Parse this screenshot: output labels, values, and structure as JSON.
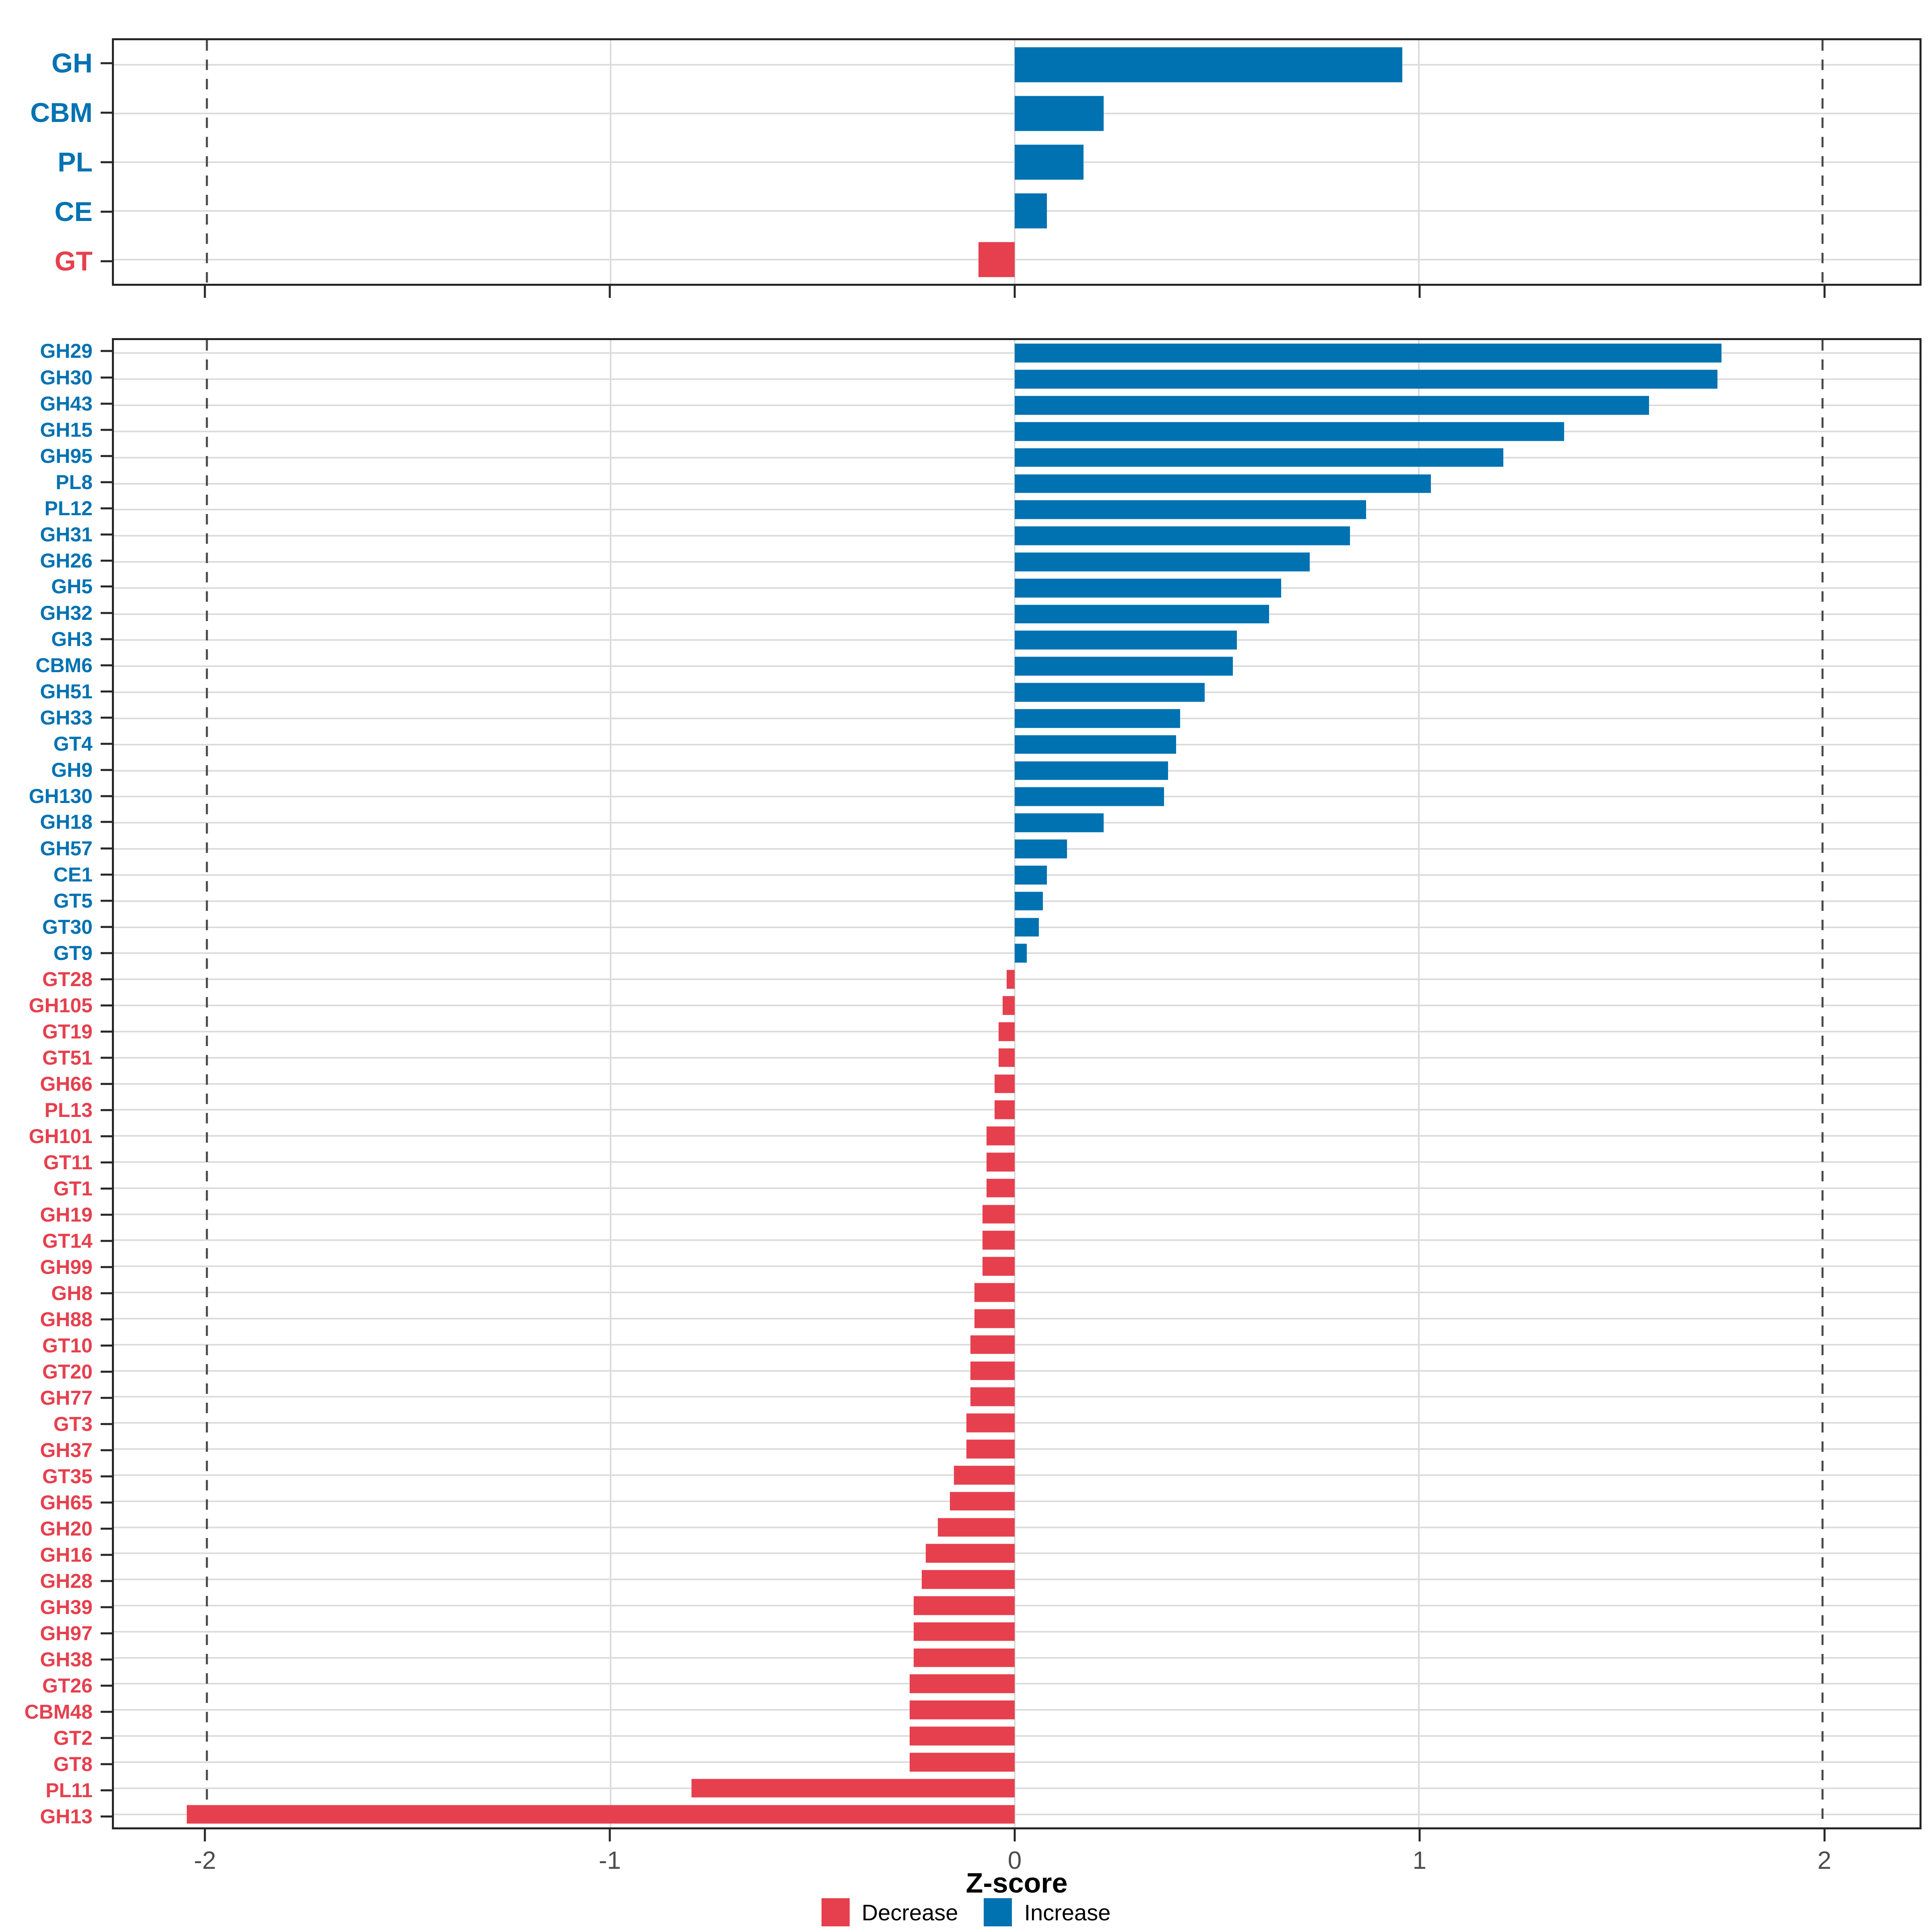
{
  "axis": {
    "tick_labels": [
      "-2",
      "-1",
      "0",
      "1",
      "2"
    ],
    "title": "Z-score"
  },
  "colors": {
    "increase": "#0072B2",
    "decrease": "#E6404E",
    "grid": "#DCDCDC",
    "axis_text": "#4D4D4D",
    "panel_border": "#262626"
  },
  "legend": {
    "decrease_label": "Decrease",
    "increase_label": "Increase"
  },
  "chart_data": {
    "type": "bar",
    "orientation": "horizontal",
    "xlabel": "Z-score",
    "x_ticks": [
      -2,
      -1,
      0,
      1,
      2
    ],
    "solid_gridlines": [
      -1,
      0,
      1
    ],
    "reference_lines": [
      -2,
      2
    ],
    "x_range": [
      -2.23,
      2.24
    ],
    "grid": true,
    "legend_position": "bottom",
    "legend": [
      {
        "label": "Decrease",
        "color": "#E6404E"
      },
      {
        "label": "Increase",
        "color": "#0072B2"
      }
    ],
    "panels": [
      {
        "name": "cazyme-classes",
        "panel_id": "panel-top",
        "gutter_id": "gutter-top",
        "tick_row_id": "xticks-top",
        "label_size": 68,
        "items": [
          {
            "label": "GH",
            "value": 0.96
          },
          {
            "label": "CBM",
            "value": 0.22
          },
          {
            "label": "PL",
            "value": 0.17
          },
          {
            "label": "CE",
            "value": 0.08
          },
          {
            "label": "GT",
            "value": -0.09
          }
        ]
      },
      {
        "name": "cazyme-families",
        "panel_id": "panel-bottom",
        "gutter_id": "gutter-bottom",
        "tick_row_id": "xaxis",
        "label_size": 50,
        "items": [
          {
            "label": "GH29",
            "value": 1.75
          },
          {
            "label": "GH30",
            "value": 1.74
          },
          {
            "label": "GH43",
            "value": 1.57
          },
          {
            "label": "GH15",
            "value": 1.36
          },
          {
            "label": "GH95",
            "value": 1.21
          },
          {
            "label": "PL8",
            "value": 1.03
          },
          {
            "label": "PL12",
            "value": 0.87
          },
          {
            "label": "GH31",
            "value": 0.83
          },
          {
            "label": "GH26",
            "value": 0.73
          },
          {
            "label": "GH5",
            "value": 0.66
          },
          {
            "label": "GH32",
            "value": 0.63
          },
          {
            "label": "GH3",
            "value": 0.55
          },
          {
            "label": "CBM6",
            "value": 0.54
          },
          {
            "label": "GH51",
            "value": 0.47
          },
          {
            "label": "GH33",
            "value": 0.41
          },
          {
            "label": "GT4",
            "value": 0.4
          },
          {
            "label": "GH9",
            "value": 0.38
          },
          {
            "label": "GH130",
            "value": 0.37
          },
          {
            "label": "GH18",
            "value": 0.22
          },
          {
            "label": "GH57",
            "value": 0.13
          },
          {
            "label": "CE1",
            "value": 0.08
          },
          {
            "label": "GT5",
            "value": 0.07
          },
          {
            "label": "GT30",
            "value": 0.06
          },
          {
            "label": "GT9",
            "value": 0.03
          },
          {
            "label": "GT28",
            "value": -0.02
          },
          {
            "label": "GH105",
            "value": -0.03
          },
          {
            "label": "GT19",
            "value": -0.04
          },
          {
            "label": "GT51",
            "value": -0.04
          },
          {
            "label": "GH66",
            "value": -0.05
          },
          {
            "label": "PL13",
            "value": -0.05
          },
          {
            "label": "GH101",
            "value": -0.07
          },
          {
            "label": "GT11",
            "value": -0.07
          },
          {
            "label": "GT1",
            "value": -0.07
          },
          {
            "label": "GH19",
            "value": -0.08
          },
          {
            "label": "GT14",
            "value": -0.08
          },
          {
            "label": "GH99",
            "value": -0.08
          },
          {
            "label": "GH8",
            "value": -0.1
          },
          {
            "label": "GH88",
            "value": -0.1
          },
          {
            "label": "GT10",
            "value": -0.11
          },
          {
            "label": "GT20",
            "value": -0.11
          },
          {
            "label": "GH77",
            "value": -0.11
          },
          {
            "label": "GT3",
            "value": -0.12
          },
          {
            "label": "GH37",
            "value": -0.12
          },
          {
            "label": "GT35",
            "value": -0.15
          },
          {
            "label": "GH65",
            "value": -0.16
          },
          {
            "label": "GH20",
            "value": -0.19
          },
          {
            "label": "GH16",
            "value": -0.22
          },
          {
            "label": "GH28",
            "value": -0.23
          },
          {
            "label": "GH39",
            "value": -0.25
          },
          {
            "label": "GH97",
            "value": -0.25
          },
          {
            "label": "GH38",
            "value": -0.25
          },
          {
            "label": "GT26",
            "value": -0.26
          },
          {
            "label": "CBM48",
            "value": -0.26
          },
          {
            "label": "GT2",
            "value": -0.26
          },
          {
            "label": "GT8",
            "value": -0.26
          },
          {
            "label": "PL11",
            "value": -0.8
          },
          {
            "label": "GH13",
            "value": -2.05
          }
        ]
      }
    ]
  }
}
